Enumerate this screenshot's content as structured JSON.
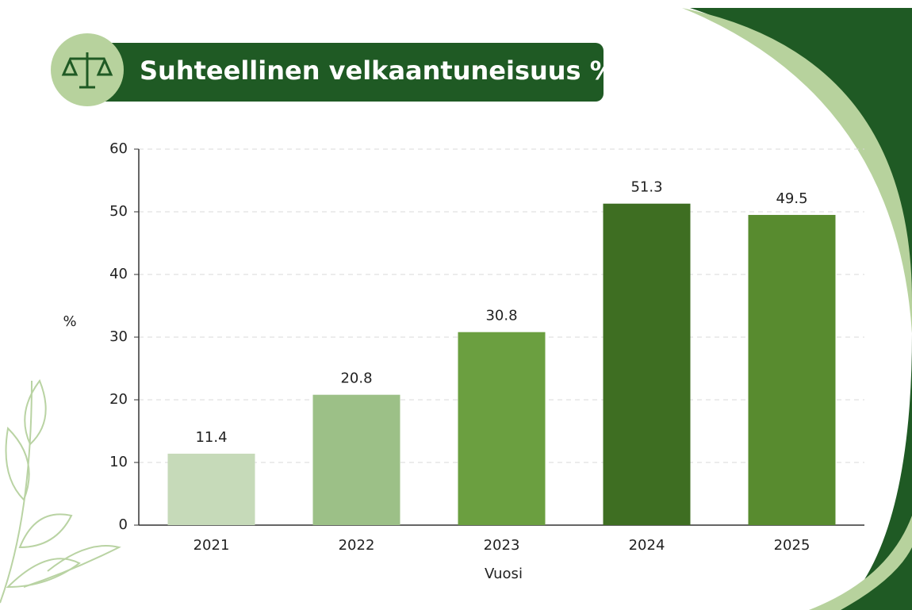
{
  "chart_data": {
    "type": "bar",
    "title": "Suhteellinen velkaantuneisuus %",
    "x_label": "Vuosi",
    "y_label": "%",
    "categories": [
      "2021",
      "2022",
      "2023",
      "2024",
      "2025"
    ],
    "values": [
      11.4,
      20.8,
      30.8,
      51.3,
      49.5
    ],
    "colors": [
      "#c6dab9",
      "#9cc087",
      "#6b9f40",
      "#3e6e22",
      "#588b2f"
    ],
    "ylim": [
      0,
      60
    ],
    "yticks": [
      0,
      10,
      20,
      30,
      40,
      50,
      60
    ],
    "grid": true
  }
}
